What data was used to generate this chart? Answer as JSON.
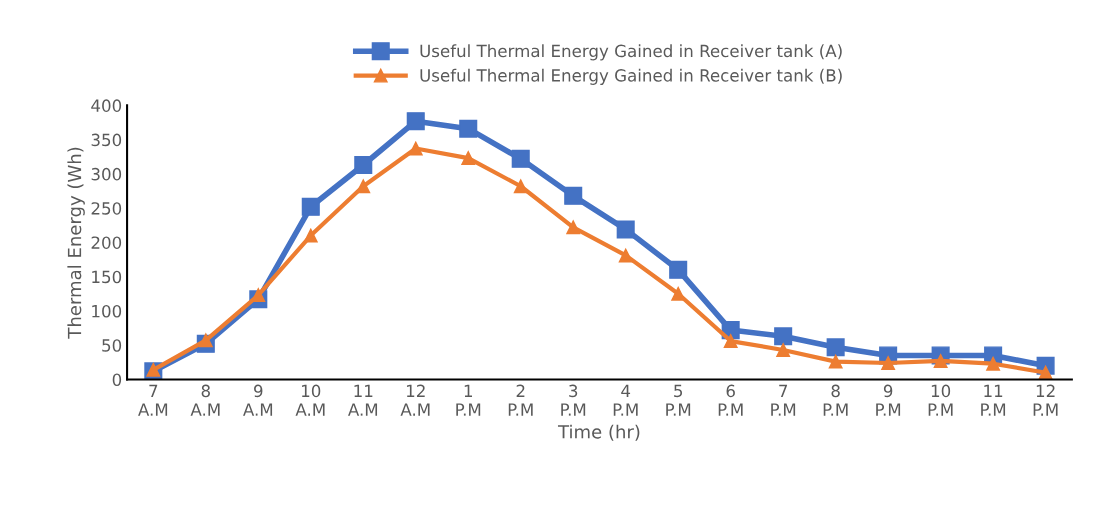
{
  "chart_data": {
    "type": "line",
    "xlabel": "Time (hr)",
    "ylabel": "Thermal Energy (Wh)",
    "categories": [
      "7\nA.M",
      "8\nA.M",
      "9\nA.M",
      "10\nA.M",
      "11\nA.M",
      "12\nA.M",
      "1\nP.M",
      "2\nP.M",
      "3\nP.M",
      "4\nP.M",
      "5\nP.M",
      "6\nP.M",
      "7\nP.M",
      "8\nP.M",
      "9\nP.M",
      "10\nP.M",
      "11\nP.M",
      "12\nP.M"
    ],
    "series": [
      {
        "name": "Useful Thermal Energy Gained in Receiver tank (A)",
        "color": "#4472c4",
        "marker": "square",
        "values": [
          12,
          52,
          117,
          252,
          313,
          377,
          366,
          322,
          268,
          219,
          160,
          72,
          63,
          47,
          35,
          35,
          35,
          20
        ]
      },
      {
        "name": "Useful Thermal Energy Gained in Receiver tank (B)",
        "color": "#ed7d31",
        "marker": "triangle",
        "values": [
          14,
          57,
          123,
          210,
          282,
          337,
          323,
          282,
          222,
          181,
          125,
          56,
          43,
          26,
          24,
          27,
          23,
          10
        ]
      }
    ],
    "ylim": [
      0,
      400
    ],
    "yticks": [
      0,
      50,
      100,
      150,
      200,
      250,
      300,
      350,
      400
    ],
    "grid": false,
    "legend": "top",
    "line_style": "solid"
  }
}
